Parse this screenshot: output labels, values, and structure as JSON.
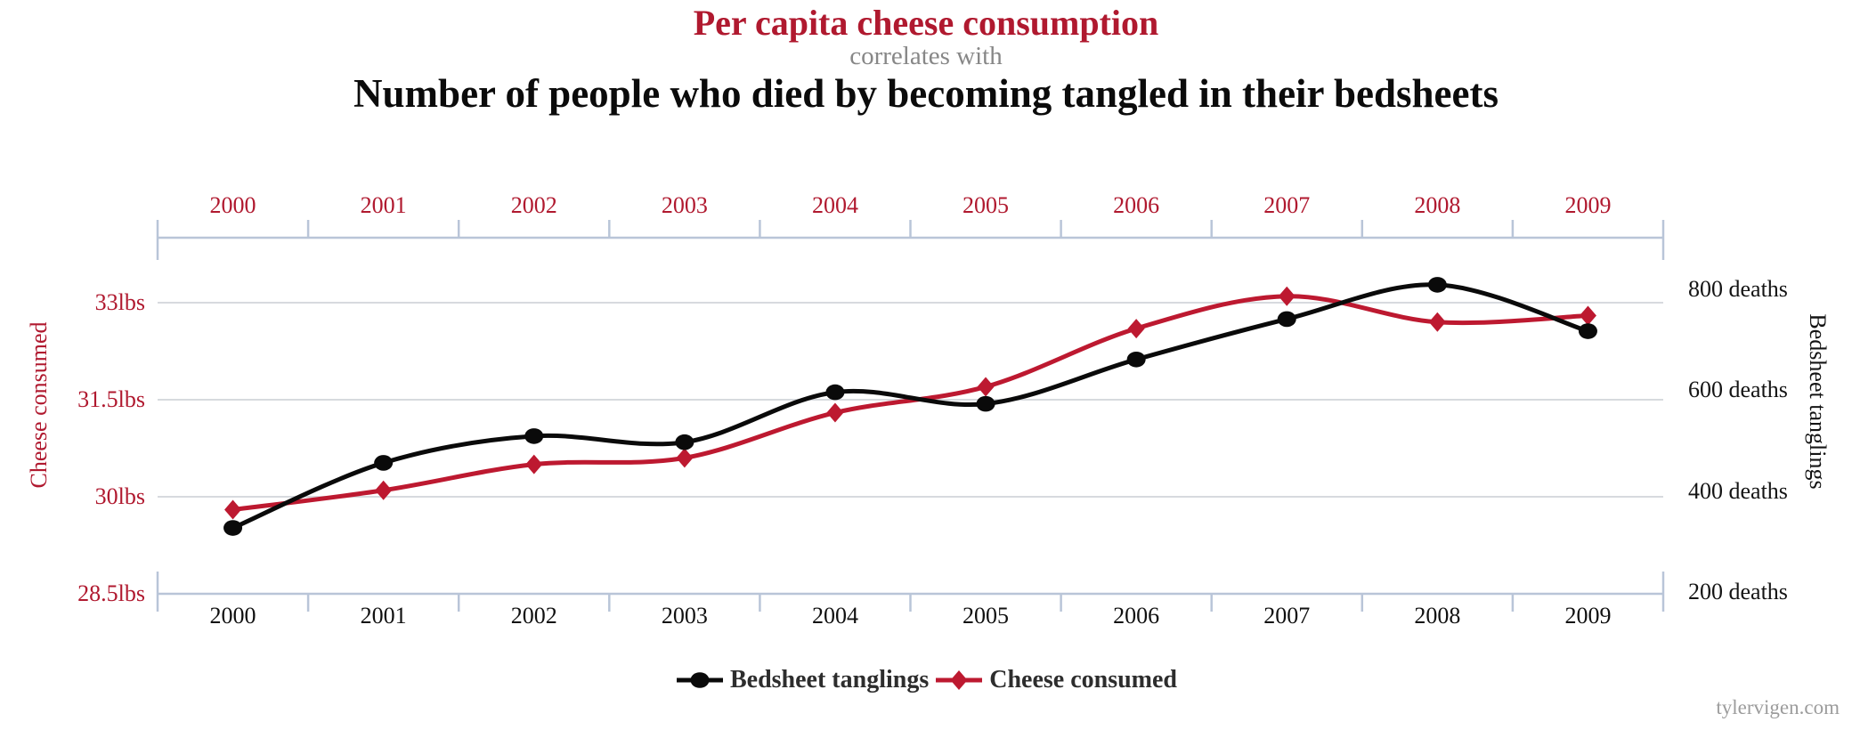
{
  "header": {
    "title_top": "Per capita cheese consumption",
    "connector": "correlates with",
    "title_bottom": "Number of people who died by becoming tangled in their bedsheets"
  },
  "watermark": "tylervigen.com",
  "colors": {
    "red_text": "#b0192f",
    "red_line": "#bd1930",
    "black_line": "#0a0a0a",
    "axis": "#b9c5d8",
    "grid": "#d7dade",
    "connector_gray": "#878787",
    "legend_text": "#2d2d2d",
    "watermark_gray": "#9c9c9c"
  },
  "chart_data": {
    "type": "line",
    "title": "Per capita cheese consumption correlates with Number of people who died by becoming tangled in their bedsheets",
    "categories": [
      "2000",
      "2001",
      "2002",
      "2003",
      "2004",
      "2005",
      "2006",
      "2007",
      "2008",
      "2009"
    ],
    "series": [
      {
        "name": "Cheese consumed",
        "axis": "left",
        "marker": "diamond",
        "color": "#bd1930",
        "unit": "lbs",
        "values": [
          29.8,
          30.1,
          30.5,
          30.6,
          31.3,
          31.7,
          32.6,
          33.1,
          32.7,
          32.8
        ]
      },
      {
        "name": "Bedsheet tanglings",
        "axis": "right",
        "marker": "circle",
        "color": "#0a0a0a",
        "unit": "deaths",
        "values": [
          327,
          456,
          509,
          497,
          596,
          573,
          661,
          741,
          809,
          717
        ]
      }
    ],
    "left_axis": {
      "title": "Cheese consumed",
      "range": [
        28.5,
        33
      ],
      "ticks": [
        {
          "value": 33,
          "label": "33lbs"
        },
        {
          "value": 31.5,
          "label": "31.5lbs"
        },
        {
          "value": 30,
          "label": "30lbs"
        },
        {
          "value": 28.5,
          "label": "28.5lbs"
        }
      ]
    },
    "right_axis": {
      "title": "Bedsheet tanglings",
      "range": [
        200,
        800
      ],
      "ticks": [
        {
          "value": 800,
          "label": "800 deaths"
        },
        {
          "value": 600,
          "label": "600 deaths"
        },
        {
          "value": 400,
          "label": "400 deaths"
        },
        {
          "value": 200,
          "label": "200 deaths"
        }
      ]
    },
    "legend": [
      {
        "label": "Bedsheet tanglings",
        "marker": "circle",
        "color": "#0a0a0a"
      },
      {
        "label": "Cheese consumed",
        "marker": "diamond",
        "color": "#bd1930"
      }
    ],
    "grid": true,
    "legend_position": "bottom",
    "x_axis_positions": [
      "top",
      "bottom"
    ]
  }
}
